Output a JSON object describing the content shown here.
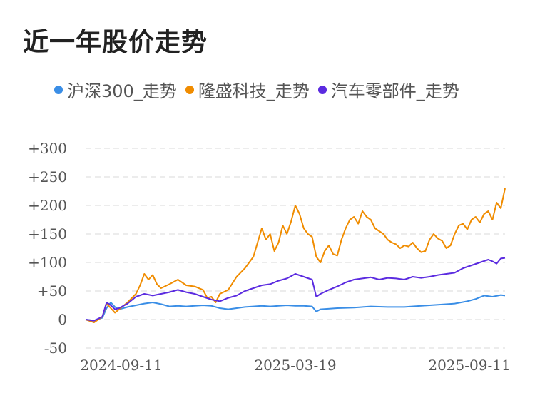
{
  "chart_data": {
    "type": "line",
    "title": "近一年股价走势",
    "xlabel": "",
    "ylabel": "",
    "ylim": [
      -50,
      300
    ],
    "y_ticks": [
      300,
      250,
      200,
      150,
      100,
      50,
      0,
      -50
    ],
    "y_tick_labels": [
      "+300",
      "+250",
      "+200",
      "+150",
      "+100",
      "+50",
      "0",
      "-50"
    ],
    "x_range": [
      0,
      100
    ],
    "x_ticks": [
      {
        "x": 8.5,
        "label": "2024-09-11"
      },
      {
        "x": 50,
        "label": "2025-03-19"
      },
      {
        "x": 91.5,
        "label": "2025-09-11"
      }
    ],
    "grid": true,
    "legend_position": "top",
    "series": [
      {
        "name": "沪深300_走势",
        "color": "#3a8ee6",
        "points": [
          [
            0,
            0
          ],
          [
            2,
            -2
          ],
          [
            4,
            3
          ],
          [
            5,
            20
          ],
          [
            6,
            30
          ],
          [
            7,
            22
          ],
          [
            8,
            18
          ],
          [
            10,
            22
          ],
          [
            12,
            25
          ],
          [
            14,
            28
          ],
          [
            16,
            30
          ],
          [
            18,
            27
          ],
          [
            20,
            23
          ],
          [
            22,
            24
          ],
          [
            24,
            23
          ],
          [
            26,
            24
          ],
          [
            28,
            25
          ],
          [
            30,
            24
          ],
          [
            32,
            20
          ],
          [
            34,
            18
          ],
          [
            36,
            20
          ],
          [
            38,
            22
          ],
          [
            40,
            23
          ],
          [
            42,
            24
          ],
          [
            44,
            23
          ],
          [
            46,
            24
          ],
          [
            48,
            25
          ],
          [
            50,
            24
          ],
          [
            52,
            24
          ],
          [
            54,
            23
          ],
          [
            55,
            14
          ],
          [
            56,
            18
          ],
          [
            60,
            20
          ],
          [
            64,
            21
          ],
          [
            68,
            23
          ],
          [
            72,
            22
          ],
          [
            76,
            22
          ],
          [
            80,
            24
          ],
          [
            84,
            26
          ],
          [
            88,
            28
          ],
          [
            91,
            32
          ],
          [
            93,
            36
          ],
          [
            95,
            42
          ],
          [
            97,
            40
          ],
          [
            99,
            43
          ],
          [
            100,
            42
          ]
        ]
      },
      {
        "name": "隆盛科技_走势",
        "color": "#f08c00",
        "points": [
          [
            0,
            0
          ],
          [
            2,
            -5
          ],
          [
            4,
            5
          ],
          [
            5,
            28
          ],
          [
            6,
            20
          ],
          [
            7,
            12
          ],
          [
            8,
            18
          ],
          [
            10,
            30
          ],
          [
            12,
            45
          ],
          [
            13,
            60
          ],
          [
            14,
            80
          ],
          [
            15,
            70
          ],
          [
            16,
            78
          ],
          [
            17,
            62
          ],
          [
            18,
            55
          ],
          [
            20,
            62
          ],
          [
            22,
            70
          ],
          [
            24,
            60
          ],
          [
            26,
            58
          ],
          [
            28,
            52
          ],
          [
            29,
            38
          ],
          [
            30,
            40
          ],
          [
            31,
            30
          ],
          [
            32,
            45
          ],
          [
            34,
            52
          ],
          [
            36,
            75
          ],
          [
            38,
            90
          ],
          [
            40,
            110
          ],
          [
            41,
            135
          ],
          [
            42,
            160
          ],
          [
            43,
            140
          ],
          [
            44,
            150
          ],
          [
            45,
            120
          ],
          [
            46,
            135
          ],
          [
            47,
            165
          ],
          [
            48,
            150
          ],
          [
            49,
            172
          ],
          [
            50,
            200
          ],
          [
            51,
            185
          ],
          [
            52,
            160
          ],
          [
            53,
            150
          ],
          [
            54,
            145
          ],
          [
            55,
            110
          ],
          [
            56,
            100
          ],
          [
            57,
            120
          ],
          [
            58,
            130
          ],
          [
            59,
            115
          ],
          [
            60,
            112
          ],
          [
            61,
            140
          ],
          [
            62,
            160
          ],
          [
            63,
            175
          ],
          [
            64,
            180
          ],
          [
            65,
            168
          ],
          [
            66,
            190
          ],
          [
            67,
            180
          ],
          [
            68,
            175
          ],
          [
            69,
            160
          ],
          [
            70,
            155
          ],
          [
            71,
            150
          ],
          [
            72,
            140
          ],
          [
            73,
            135
          ],
          [
            74,
            132
          ],
          [
            75,
            125
          ],
          [
            76,
            130
          ],
          [
            77,
            128
          ],
          [
            78,
            135
          ],
          [
            79,
            125
          ],
          [
            80,
            118
          ],
          [
            81,
            120
          ],
          [
            82,
            140
          ],
          [
            83,
            150
          ],
          [
            84,
            142
          ],
          [
            85,
            138
          ],
          [
            86,
            125
          ],
          [
            87,
            130
          ],
          [
            88,
            150
          ],
          [
            89,
            165
          ],
          [
            90,
            168
          ],
          [
            91,
            158
          ],
          [
            92,
            175
          ],
          [
            93,
            180
          ],
          [
            94,
            170
          ],
          [
            95,
            185
          ],
          [
            96,
            190
          ],
          [
            97,
            175
          ],
          [
            98,
            205
          ],
          [
            99,
            195
          ],
          [
            100,
            230
          ]
        ]
      },
      {
        "name": "汽车零部件_走势",
        "color": "#5b2be0",
        "points": [
          [
            0,
            0
          ],
          [
            2,
            -2
          ],
          [
            4,
            5
          ],
          [
            5,
            30
          ],
          [
            6,
            25
          ],
          [
            7,
            18
          ],
          [
            8,
            20
          ],
          [
            10,
            28
          ],
          [
            12,
            40
          ],
          [
            14,
            45
          ],
          [
            16,
            42
          ],
          [
            18,
            45
          ],
          [
            20,
            48
          ],
          [
            22,
            52
          ],
          [
            24,
            48
          ],
          [
            26,
            45
          ],
          [
            28,
            40
          ],
          [
            30,
            35
          ],
          [
            32,
            32
          ],
          [
            34,
            38
          ],
          [
            36,
            42
          ],
          [
            38,
            50
          ],
          [
            40,
            55
          ],
          [
            42,
            60
          ],
          [
            44,
            62
          ],
          [
            46,
            68
          ],
          [
            48,
            72
          ],
          [
            50,
            80
          ],
          [
            52,
            75
          ],
          [
            54,
            70
          ],
          [
            55,
            40
          ],
          [
            56,
            45
          ],
          [
            58,
            52
          ],
          [
            60,
            58
          ],
          [
            62,
            65
          ],
          [
            64,
            70
          ],
          [
            66,
            72
          ],
          [
            68,
            74
          ],
          [
            70,
            70
          ],
          [
            72,
            73
          ],
          [
            74,
            72
          ],
          [
            76,
            70
          ],
          [
            78,
            75
          ],
          [
            80,
            73
          ],
          [
            82,
            75
          ],
          [
            84,
            78
          ],
          [
            86,
            80
          ],
          [
            88,
            82
          ],
          [
            90,
            90
          ],
          [
            92,
            95
          ],
          [
            94,
            100
          ],
          [
            96,
            105
          ],
          [
            97,
            102
          ],
          [
            98,
            98
          ],
          [
            99,
            107
          ],
          [
            100,
            108
          ]
        ]
      }
    ]
  }
}
